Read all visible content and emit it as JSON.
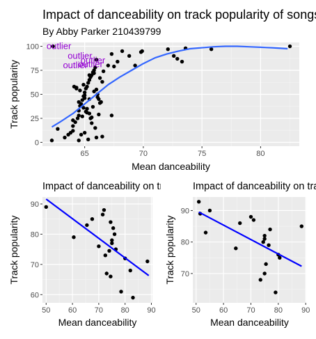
{
  "chart_data": [
    {
      "type": "scatter",
      "title": "Impact of danceability on track popularity of songs",
      "subtitle": "By Abby Parker 210439799",
      "xlabel": "Mean danceability",
      "ylabel": "Track popularity",
      "xlim": [
        61.4,
        83.3
      ],
      "ylim": [
        -4,
        104
      ],
      "xticks": [
        65,
        70,
        75,
        80
      ],
      "yticks": [
        0,
        25,
        50,
        75,
        100
      ],
      "grid": true,
      "trend": "smooth",
      "trend_color": "#3366ff",
      "point_color": "#000000",
      "annotation_color": "#9400d3",
      "trend_line": {
        "x": [
          62.2,
          63,
          64,
          65,
          66,
          67,
          68,
          69,
          70,
          71,
          72,
          73,
          74,
          75,
          76,
          77,
          78,
          79,
          80,
          81,
          82.3
        ],
        "y": [
          16,
          22,
          30,
          40,
          50,
          60,
          68,
          75,
          82,
          88,
          92,
          95,
          97.5,
          98.5,
          99.5,
          100,
          100,
          99.5,
          99,
          98.5,
          97.5
        ]
      },
      "annotations": [
        {
          "text": "outlier",
          "x": 62.8,
          "y": 100
        },
        {
          "text": "outlier",
          "x": 64.6,
          "y": 90
        },
        {
          "text": "outlier",
          "x": 65.7,
          "y": 85
        },
        {
          "text": "outlier",
          "x": 64.2,
          "y": 80
        },
        {
          "text": "outlier",
          "x": 65.5,
          "y": 81
        }
      ],
      "points": {
        "x": [
          62.3,
          62.2,
          62.7,
          63.3,
          63.6,
          63.8,
          64.0,
          64.0,
          64.2,
          64.4,
          64.5,
          64.5,
          64.6,
          64.7,
          64.8,
          64.9,
          65.0,
          65.1,
          65.2,
          65.3,
          65.4,
          65.5,
          65.6,
          65.7,
          65.8,
          65.9,
          66.0,
          66.1,
          66.2,
          66.4,
          64.1,
          64.3,
          64.6,
          64.9,
          65.0,
          65.2,
          65.4,
          65.5,
          65.6,
          65.9,
          65.0,
          64.7,
          65.3,
          66.0,
          64.0,
          64.8,
          65.1,
          65.7,
          66.3,
          66.5,
          64.3,
          65.0,
          65.8,
          66.1,
          64.5,
          64.9,
          65.2,
          65.6,
          66.2,
          65.4,
          65.8,
          66.3,
          66.6,
          67.0,
          67.3,
          67.5,
          67.8,
          68.2,
          68.8,
          69.3,
          69.8,
          69.9,
          72.1,
          72.6,
          72.9,
          73.3,
          73.6,
          75.8,
          82.5,
          67.3,
          66.5,
          66.0,
          65.4,
          64.5
        ],
        "y": [
          100,
          2,
          14,
          5,
          8,
          10,
          12,
          17,
          21,
          25,
          28,
          33,
          38,
          40,
          44,
          48,
          52,
          56,
          58,
          62,
          65,
          68,
          70,
          73,
          75,
          78,
          55,
          50,
          45,
          42,
          58,
          56,
          54,
          60,
          46,
          35,
          30,
          25,
          20,
          15,
          10,
          8,
          3,
          5,
          23,
          27,
          32,
          37,
          41,
          63,
          57,
          49,
          53,
          47,
          42,
          36,
          31,
          26,
          29,
          70,
          72,
          67,
          74,
          80,
          92,
          79,
          84,
          95,
          90,
          80,
          94,
          95,
          97,
          90,
          87,
          84,
          98,
          97,
          100,
          28,
          6,
          86,
          45,
          2
        ]
      }
    },
    {
      "type": "scatter",
      "title": "Impact of danceability on track popularity of songs",
      "xlabel": "Mean danceability",
      "ylabel": "Track popularity",
      "xlim": [
        48.6,
        90.4
      ],
      "ylim": [
        57.3,
        92.3
      ],
      "xticks": [
        50,
        60,
        70,
        80,
        90
      ],
      "yticks": [
        60,
        70,
        80,
        90
      ],
      "grid": true,
      "trend": "linear",
      "trend_color": "#0000ff",
      "point_color": "#000000",
      "trend_line": {
        "x": [
          50,
          89
        ],
        "y": [
          91.6,
          66.3
        ]
      },
      "points": {
        "x": [
          50,
          60.5,
          65.5,
          67.5,
          70,
          71.5,
          72,
          72.5,
          73,
          74,
          74.5,
          74.5,
          75,
          75,
          75.5,
          76,
          76.5,
          78.5,
          80,
          82,
          83,
          88.5
        ],
        "y": [
          89,
          79,
          83,
          85,
          76,
          86.5,
          88,
          73,
          67,
          74.5,
          66,
          84,
          78,
          77,
          82,
          80,
          75,
          61,
          72,
          68,
          59,
          71
        ]
      }
    },
    {
      "type": "scatter",
      "title": "Impact of danceability on track popularity of songs",
      "xlabel": "Mean danceability",
      "ylabel": "Track popularity",
      "xlim": [
        48.8,
        90.2
      ],
      "ylim": [
        60.7,
        94.3
      ],
      "xticks": [
        50,
        60,
        70,
        80,
        90
      ],
      "yticks": [
        70,
        80,
        90
      ],
      "grid": true,
      "trend": "linear",
      "trend_color": "#0000ff",
      "point_color": "#000000",
      "trend_line": {
        "x": [
          51,
          88.5
        ],
        "y": [
          89.5,
          72.3
        ]
      },
      "points": {
        "x": [
          51,
          51.5,
          53.5,
          55,
          64.5,
          66,
          70,
          71,
          73.5,
          74.5,
          75,
          75,
          75,
          75.5,
          76.5,
          77,
          79,
          80,
          80.5,
          88.5
        ],
        "y": [
          92.8,
          89,
          83,
          90,
          78,
          86,
          88,
          87,
          68,
          80,
          82,
          81,
          70,
          73,
          79,
          84,
          64,
          76,
          75,
          85
        ]
      }
    }
  ]
}
